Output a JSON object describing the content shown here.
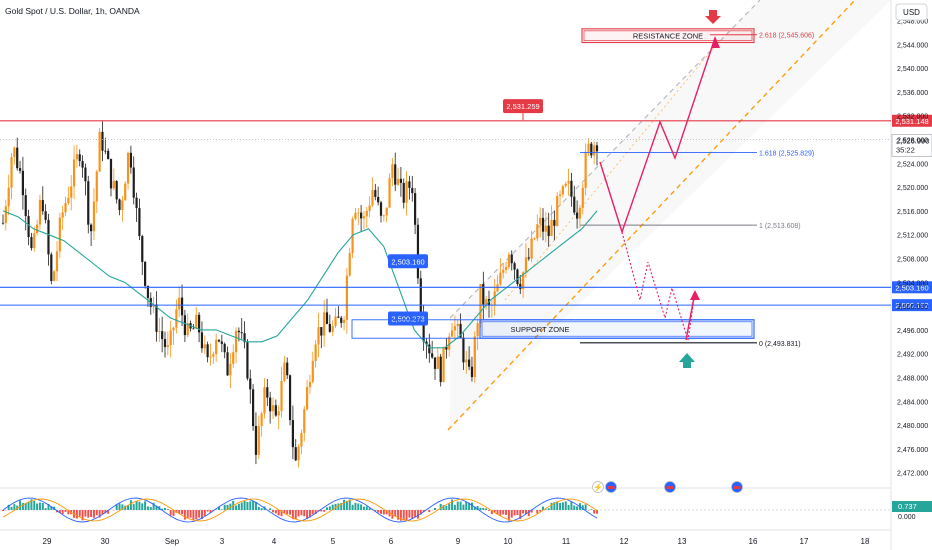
{
  "header": {
    "symbol_title": "Gold Spot / U.S. Dollar, 1h, OANDA",
    "currency_button": "USD"
  },
  "colors": {
    "up": "#f7931a",
    "down": "#1e1e1e",
    "ma": "#26a69a",
    "resistance": "#e53945",
    "support": "#2962ff",
    "fib": "#2962ff",
    "channel_upper": "#ffffff",
    "channel_lower": "#ff9800",
    "projection": "#e91e63",
    "osc_pos": "#26a69a",
    "osc_neg": "#ef5350"
  },
  "chart_data": {
    "type": "candlestick",
    "title": "Gold Spot / U.S. Dollar, 1h, OANDA",
    "ylim": [
      2470,
      2549
    ],
    "y_ticks": [
      "2,548.000",
      "2,544.000",
      "2,540.000",
      "2,536.000",
      "2,532.000",
      "2,528.000",
      "2,524.000",
      "2,520.000",
      "2,516.000",
      "2,512.000",
      "2,508.000",
      "2,504.000",
      "2,500.000",
      "2,496.000",
      "2,492.000",
      "2,488.000",
      "2,484.000",
      "2,480.000",
      "2,476.000",
      "2,472.000"
    ],
    "y_tick_values": [
      2548,
      2544,
      2540,
      2536,
      2532,
      2528,
      2524,
      2520,
      2516,
      2512,
      2508,
      2504,
      2500,
      2496,
      2492,
      2488,
      2484,
      2480,
      2476,
      2472
    ],
    "x_ticks": [
      "29",
      "30",
      "Sep",
      "3",
      "4",
      "5",
      "6",
      "9",
      "10",
      "11",
      "12",
      "13",
      "16",
      "17",
      "18"
    ],
    "price_path": [
      2514,
      2527,
      2521,
      2508,
      2519,
      2503,
      2515,
      2521,
      2527,
      2512,
      2529,
      2522,
      2516,
      2527,
      2511,
      2501,
      2496,
      2492,
      2501,
      2495,
      2497,
      2490,
      2496,
      2489,
      2497,
      2491,
      2476,
      2486,
      2481,
      2490,
      2473,
      2483,
      2495,
      2497,
      2496,
      2499,
      2518,
      2514,
      2520,
      2513,
      2524,
      2518,
      2521,
      2497,
      2492,
      2489,
      2498,
      2494,
      2487,
      2502,
      2499,
      2504,
      2510,
      2504,
      2508,
      2514,
      2512,
      2517,
      2520,
      2516,
      2526,
      2528
    ],
    "ma_path": [
      2516,
      2515,
      2513,
      2512,
      2511,
      2509,
      2507,
      2505,
      2504,
      2502,
      2500,
      2498,
      2497,
      2496,
      2496,
      2495,
      2494,
      2494,
      2495,
      2498,
      2501,
      2505,
      2509,
      2512,
      2513,
      2510,
      2503,
      2496,
      2493,
      2493,
      2495,
      2498,
      2501,
      2503,
      2505,
      2507,
      2509,
      2511,
      2513,
      2516
    ],
    "levels": [
      {
        "label": "2,531.148",
        "value": 2531.148,
        "kind": "resistance"
      },
      {
        "label": "2,503.160",
        "value": 2503.16,
        "kind": "support"
      },
      {
        "label": "2,500.162",
        "value": 2500.162,
        "kind": "support"
      }
    ],
    "callouts": [
      {
        "label": "2,531.259",
        "value": 2531.259
      },
      {
        "label": "2,503.160",
        "value": 2503.16
      },
      {
        "label": "2,500.273",
        "value": 2500.273
      }
    ],
    "current_price": {
      "label": "2,526.990",
      "value": 2526.99,
      "countdown": "35:22",
      "ref_tick": "2,528.000"
    },
    "fib_levels": [
      {
        "label": "2.618 (2,545.606)",
        "value": 2545.606
      },
      {
        "label": "1.618 (2,525.829)",
        "value": 2525.829
      },
      {
        "label": "1 (2,513.608)",
        "value": 2513.608
      },
      {
        "label": "0 (2,493.831)",
        "value": 2493.831
      }
    ],
    "zones": [
      {
        "label": "RESISTANCE ZONE",
        "from": 2544.3,
        "to": 2546.6
      },
      {
        "label": "SUPPORT ZONE",
        "from": 2494.6,
        "to": 2497.7
      }
    ],
    "oscillator": {
      "value_label": "0.737",
      "zero_label": "0.000"
    }
  }
}
